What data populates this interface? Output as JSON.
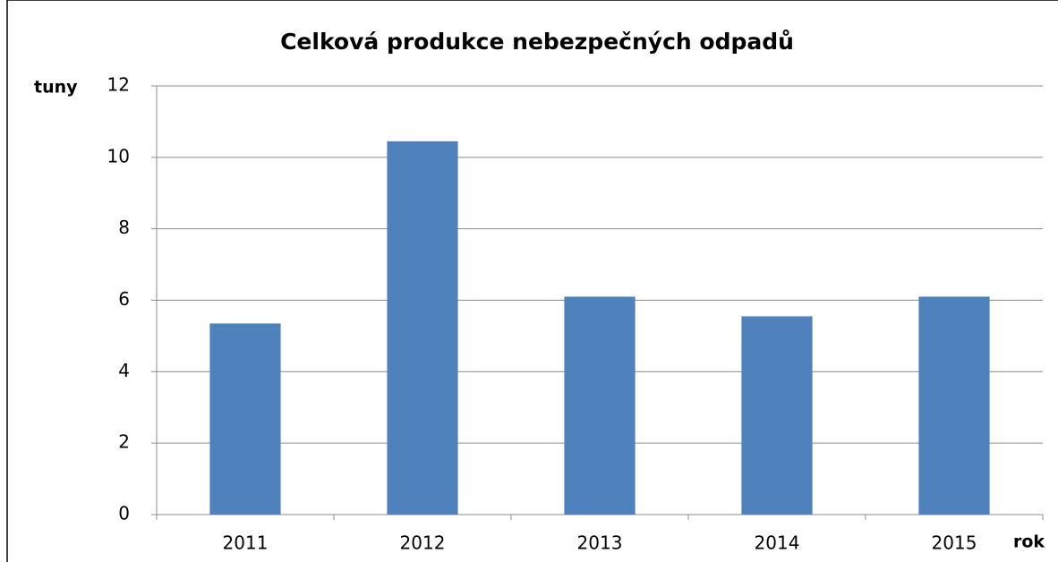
{
  "chart_data": {
    "type": "bar",
    "title": "Celková produkce nebezpečných odpadů",
    "y_label": "tuny",
    "x_label": "rok",
    "categories": [
      "2011",
      "2012",
      "2013",
      "2014",
      "2015"
    ],
    "values": [
      5.35,
      10.45,
      6.1,
      5.55,
      6.1
    ],
    "color": "#4f81bd",
    "ylim": [
      0,
      12
    ],
    "yticks": [
      0,
      2,
      4,
      6,
      8,
      10,
      12
    ],
    "grid": true
  }
}
